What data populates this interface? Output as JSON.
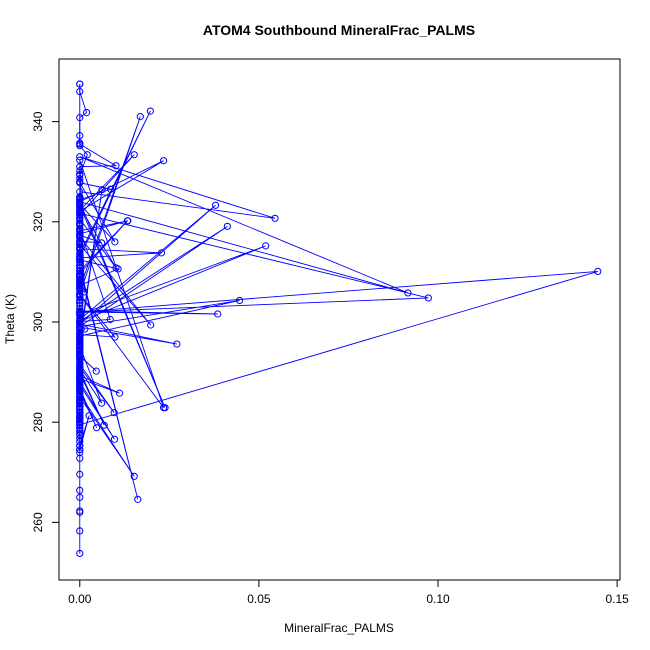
{
  "chart_data": {
    "type": "line",
    "title": "ATOM4 Southbound MineralFrac_PALMS",
    "xlabel": "MineralFrac_PALMS",
    "ylabel": "Theta (K)",
    "xlim": [
      -0.0058,
      0.1508
    ],
    "ylim": [
      248.5,
      352.5
    ],
    "xticks": [
      0.0,
      0.05,
      0.1,
      0.15
    ],
    "xtick_labels": [
      "0.00",
      "0.05",
      "0.10",
      "0.15"
    ],
    "yticks": [
      260,
      280,
      300,
      320,
      340
    ],
    "ytick_labels": [
      "260",
      "280",
      "300",
      "320",
      "340"
    ],
    "grid": false,
    "legend": "none",
    "series": [
      {
        "color": "#0000ff",
        "marker": "open-circle",
        "line": true,
        "x": [
          0.0,
          0.0,
          0.0019,
          0.0,
          0.0,
          0.0,
          0.0,
          0.0101,
          0.0,
          0.0,
          0.0,
          0.0086,
          0.0,
          0.0,
          0.0,
          0.0,
          0.0152,
          0.0,
          0.0,
          0.0,
          0.0061,
          0.0,
          0.0,
          0.0,
          0.0,
          0.0197,
          0.0,
          0.0,
          0.0,
          0.0,
          0.0,
          0.0013,
          0.0,
          0.0234,
          0.0,
          0.0,
          0.0,
          0.0,
          0.0,
          0.0,
          0.0014,
          0.0,
          0.0,
          0.0,
          0.0,
          0.0046,
          0.0,
          0.0,
          0.0,
          0.0,
          0.0,
          0.0,
          0.0,
          0.0,
          0.0,
          0.0,
          0.0,
          0.0026,
          0.0,
          0.0,
          0.0,
          0.0,
          0.0,
          0.0,
          0.0,
          0.0,
          0.0,
          0.0,
          0.0,
          0.0,
          0.0,
          0.0,
          0.0,
          0.0,
          0.0,
          0.0,
          0.0,
          0.0,
          0.0,
          0.0,
          0.0
        ],
        "y": [
          347.5,
          346.0,
          341.8,
          340.8,
          337.2,
          335.7,
          335.5,
          331.2,
          331.0,
          328.6,
          327.8,
          326.5,
          324.4,
          324.9,
          323.7,
          322.3,
          333.4,
          321.4,
          319.5,
          317.3,
          315.8,
          316.1,
          315.6,
          314.8,
          313.0,
          342.1,
          313.6,
          312.5,
          311.2,
          309.6,
          307.0,
          306.0,
          332.3,
          282.9,
          305.4,
          303.8,
          301.8,
          301.5,
          300.2,
          299.7,
          298.6,
          297.1,
          296.2,
          295.4,
          293.2,
          290.2,
          293.3,
          287.4,
          286.4,
          285.1,
          284.2,
          283.7,
          280.9,
          279.8,
          278.9,
          278.2,
          275.3,
          281.3,
          274.5,
          269.6,
          265.0,
          262.0,
          253.8,
          258.3,
          262.3,
          266.4,
          272.8,
          277.4,
          283.1,
          288.3,
          294.0,
          299.8,
          305.2,
          309.4,
          312.8,
          317.2,
          320.7,
          324.6,
          328.0,
          330.2,
          329.5
        ]
      },
      {
        "color": "#0000ff",
        "marker": "open-circle",
        "line": true,
        "x": [
          0.0,
          0.0,
          0.0021,
          0.0,
          0.0,
          0.0098,
          0.0,
          0.0,
          0.0101,
          0.0,
          0.0,
          0.0,
          0.0134,
          0.0,
          0.0,
          0.0198,
          0.0,
          0.0,
          0.0228,
          0.0,
          0.0,
          0.0,
          0.0162,
          0.0,
          0.0,
          0.0,
          0.0,
          0.0,
          0.0,
          0.0385,
          0.0,
          0.0,
          0.0,
          0.0,
          0.0,
          0.0,
          0.0,
          0.0,
          0.0,
          0.0,
          0.0,
          0.0,
          0.0,
          0.0,
          0.0,
          0.0,
          0.0,
          0.0,
          0.0,
          0.0,
          0.0,
          0.0,
          0.0,
          0.0,
          0.0,
          0.0,
          0.0,
          0.0,
          0.0,
          0.0,
          0.0,
          0.0,
          0.0,
          0.0,
          0.0,
          0.0,
          0.0,
          0.0,
          0.0,
          0.0,
          0.0,
          0.0,
          0.0,
          0.0,
          0.0,
          0.0,
          0.0,
          0.0,
          0.0
        ],
        "y": [
          347.5,
          335.2,
          333.4,
          329.3,
          327.8,
          316.0,
          323.5,
          323.0,
          310.8,
          320.6,
          319.8,
          318.2,
          320.2,
          317.6,
          317.0,
          299.4,
          315.4,
          314.6,
          313.8,
          312.8,
          312.0,
          311.3,
          264.6,
          310.7,
          309.0,
          308.3,
          307.6,
          306.8,
          302.2,
          301.6,
          302.0,
          301.7,
          301.3,
          300.7,
          300.3,
          299.8,
          299.2,
          298.8,
          298.4,
          297.8,
          297.4,
          296.8,
          296.3,
          295.7,
          295.0,
          294.5,
          294.0,
          293.6,
          293.0,
          292.6,
          292.0,
          291.5,
          290.8,
          290.2,
          289.8,
          289.0,
          288.5,
          287.9,
          287.2,
          286.6,
          286.1,
          285.3,
          284.6,
          283.9,
          283.1,
          282.5,
          281.8,
          281.2,
          280.5,
          279.9,
          279.4,
          278.8,
          278.2,
          277.6,
          276.8,
          276.1,
          275.3,
          274.5,
          273.9
        ]
      },
      {
        "color": "#0000ff",
        "marker": "open-circle",
        "line": true,
        "x": [
          0.0,
          0.0,
          0.0,
          0.0238,
          0.0,
          0.0,
          0.0,
          0.0,
          0.0,
          0.0,
          0.0,
          0.0,
          0.0,
          0.0,
          0.0,
          0.0,
          0.0,
          0.0,
          0.0,
          0.0,
          0.0,
          0.0,
          0.0,
          0.0,
          0.0,
          0.0,
          0.0,
          0.0,
          0.0,
          0.0,
          0.0,
          0.0
        ],
        "y": [
          325.0,
          324.6,
          324.0,
          282.9,
          323.3,
          322.8,
          322.3,
          321.8,
          321.3,
          320.8,
          320.3,
          319.8,
          319.2,
          318.6,
          318.0,
          317.4,
          316.8,
          316.2,
          315.6,
          315.0,
          314.4,
          313.8,
          313.2,
          312.6,
          312.0,
          311.4,
          310.8,
          310.2,
          309.6,
          309.0,
          308.4,
          307.8
        ]
      },
      {
        "color": "#0000ff",
        "marker": "open-circle",
        "line": true,
        "x": [
          0.0,
          0.0545,
          0.0,
          0.0916,
          0.0,
          0.0234,
          0.0,
          0.0,
          0.0973,
          0.0,
          0.1446,
          0.0,
          0.0,
          0.0519,
          0.0,
          0.0412,
          0.0,
          0.0446,
          0.0,
          0.0,
          0.0,
          0.0062,
          0.0,
          0.0,
          0.0,
          0.0,
          0.0,
          0.0
        ],
        "y": [
          326.0,
          320.7,
          333.0,
          305.8,
          324.0,
          332.2,
          322.1,
          321.7,
          304.8,
          302.0,
          310.1,
          279.5,
          301.5,
          315.2,
          300.1,
          319.1,
          299.1,
          304.3,
          297.2,
          297.0,
          296.5,
          326.4,
          295.6,
          295.1,
          294.6,
          294.1,
          293.6,
          293.1
        ]
      },
      {
        "color": "#0000ff",
        "marker": "open-circle",
        "line": true,
        "x": [
          0.0,
          0.0379,
          0.0,
          0.0271,
          0.0,
          0.0,
          0.0,
          0.0,
          0.0,
          0.0,
          0.0,
          0.0,
          0.0,
          0.0,
          0.0,
          0.0,
          0.0,
          0.0,
          0.0,
          0.0,
          0.0,
          0.0,
          0.0,
          0.0
        ],
        "y": [
          300.5,
          323.3,
          299.6,
          295.6,
          299.0,
          298.6,
          298.0,
          297.6,
          297.0,
          296.5,
          296.0,
          295.5,
          295.0,
          294.5,
          294.0,
          293.5,
          293.0,
          292.4,
          291.8,
          291.2,
          290.6,
          290.0,
          289.4,
          288.8
        ]
      },
      {
        "color": "#0000ff",
        "marker": "open-circle",
        "line": true,
        "x": [
          0.0,
          0.0085,
          0.0,
          0.0,
          0.0096,
          0.0,
          0.0,
          0.0068,
          0.0,
          0.0,
          0.0111,
          0.0,
          0.0,
          0.0097,
          0.0,
          0.0,
          0.0047,
          0.0,
          0.0,
          0.0152,
          0.0,
          0.0,
          0.0,
          0.0,
          0.0,
          0.0,
          0.0,
          0.0,
          0.0
        ],
        "y": [
          318.6,
          300.5,
          300.1,
          291.6,
          281.9,
          291.0,
          290.3,
          279.4,
          289.8,
          289.3,
          285.8,
          288.7,
          288.1,
          276.6,
          287.5,
          286.8,
          278.9,
          286.2,
          285.6,
          269.2,
          285.0,
          284.4,
          283.8,
          283.2,
          282.6,
          282.0,
          281.4,
          280.8,
          280.2
        ]
      },
      {
        "color": "#0000ff",
        "marker": "open-circle",
        "line": true,
        "x": [
          0.0,
          0.0098,
          0.0,
          0.0,
          0.0061,
          0.0,
          0.0,
          0.0,
          0.0,
          0.0,
          0.0,
          0.0,
          0.0,
          0.0,
          0.0
        ],
        "y": [
          305.5,
          297.0,
          297.5,
          295.2,
          283.8,
          290.5,
          289.0,
          288.0,
          287.0,
          286.0,
          285.0,
          284.0,
          283.0,
          282.0,
          281.0
        ]
      },
      {
        "color": "#0000ff",
        "marker": "open-circle",
        "line": true,
        "x": [
          0.0,
          0.0107,
          0.0,
          0.0,
          0.0169,
          0.0,
          0.0,
          0.0,
          0.0,
          0.0,
          0.0,
          0.0
        ],
        "y": [
          312.4,
          310.6,
          307.3,
          306.7,
          341.0,
          305.6,
          305.0,
          304.4,
          303.8,
          303.2,
          302.6,
          302.0
        ]
      },
      {
        "color": "#0000ff",
        "marker": "open-circle",
        "line": true,
        "x": [
          0.0,
          0.0133,
          0.0,
          0.0,
          0.0,
          0.0,
          0.0,
          0.0,
          0.0,
          0.0,
          0.0,
          0.0,
          0.0
        ],
        "y": [
          310.2,
          320.2,
          309.7,
          309.2,
          308.6,
          308.0,
          307.4,
          306.8,
          306.2,
          305.6,
          305.0,
          304.4,
          303.8
        ]
      }
    ]
  }
}
